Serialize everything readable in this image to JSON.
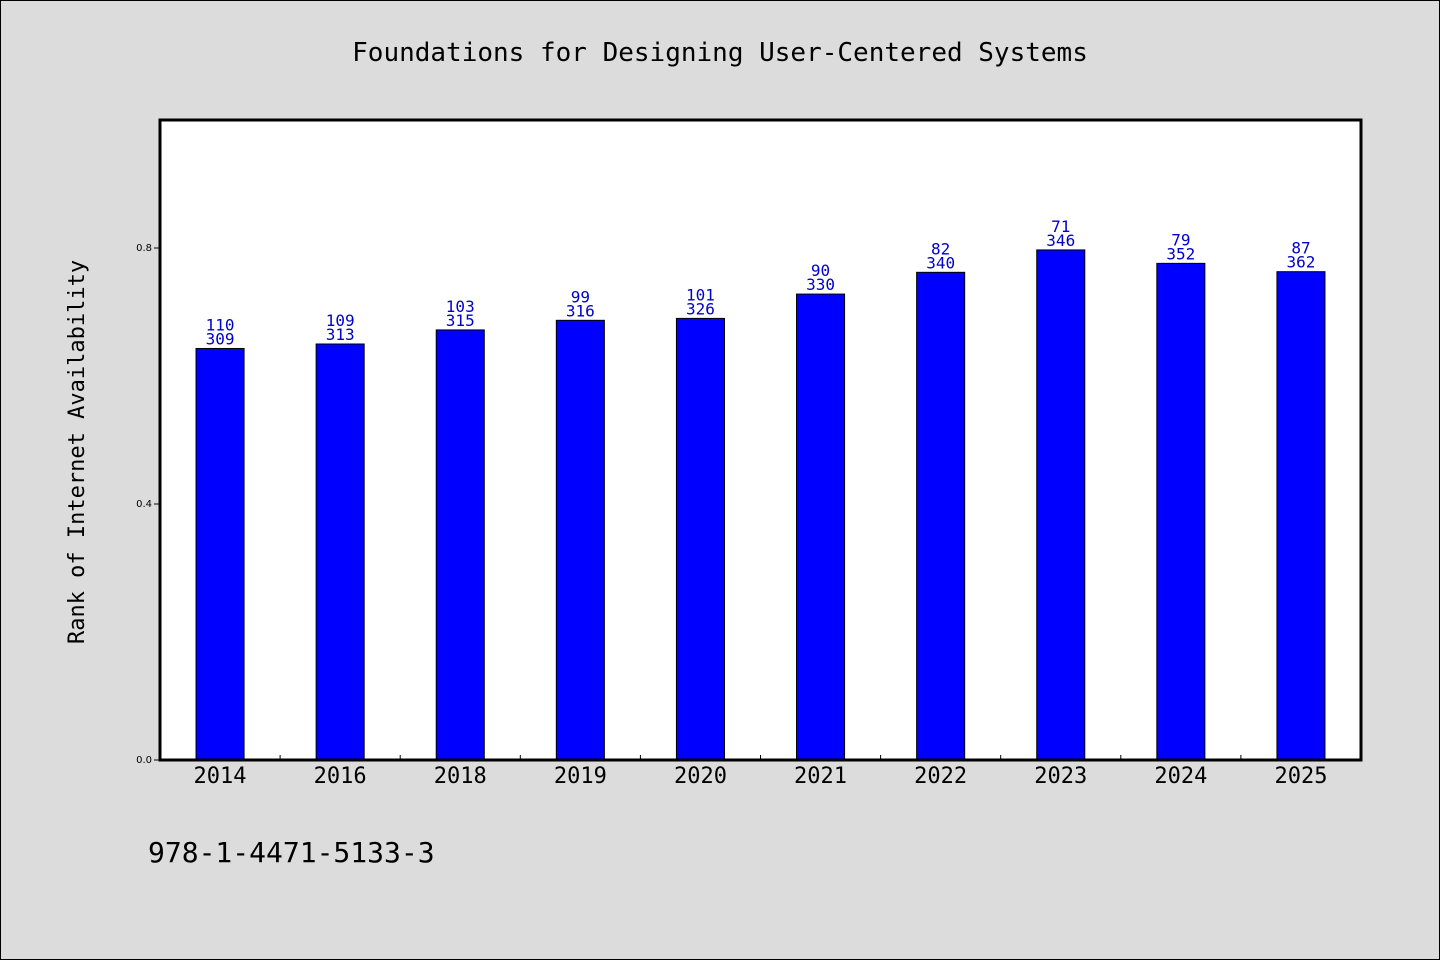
{
  "chart_data": {
    "type": "bar",
    "title": "Foundations for Designing User-Centered Systems",
    "ylabel": "Rank of Internet Availability",
    "xlabel": "",
    "categories": [
      "2014",
      "2016",
      "2018",
      "2019",
      "2020",
      "2021",
      "2022",
      "2023",
      "2024",
      "2025"
    ],
    "values": [
      0.643,
      0.65,
      0.672,
      0.687,
      0.69,
      0.728,
      0.762,
      0.797,
      0.776,
      0.763
    ],
    "label_top": [
      "110",
      "109",
      "103",
      "99",
      "101",
      "90",
      "82",
      "71",
      "79",
      "87"
    ],
    "label_bottom": [
      "309",
      "313",
      "315",
      "316",
      "326",
      "330",
      "340",
      "346",
      "352",
      "362"
    ],
    "ylim": [
      0,
      1.0
    ],
    "yticks": [
      0.0,
      0.4,
      0.8
    ],
    "ytick_labels": [
      "0.0",
      "0.4",
      "0.8"
    ],
    "bar_color": "#0000ff",
    "label_color": "#0000cc",
    "grid": false,
    "legend": "none"
  },
  "footer": {
    "isbn": "978-1-4471-5133-3"
  }
}
